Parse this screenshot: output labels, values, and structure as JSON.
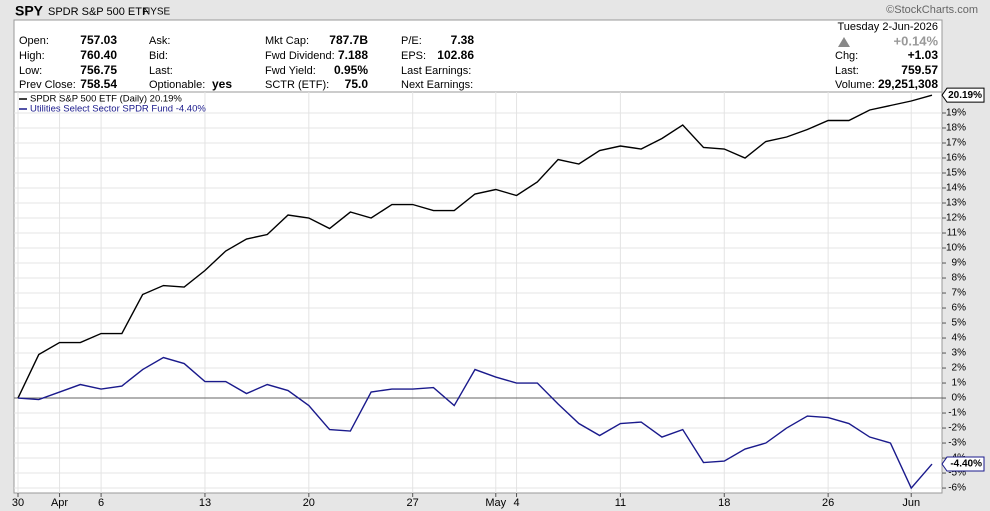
{
  "header": {
    "symbol": "SPY",
    "name": "SPDR S&P 500 ETF",
    "exchange": "NYSE",
    "credit": "©StockCharts.com",
    "date": "Tuesday  2-Jun-2026",
    "change_pct": "+0.14%",
    "columns": [
      [
        {
          "label": "Open:",
          "value": "757.03"
        },
        {
          "label": "High:",
          "value": "760.40"
        },
        {
          "label": "Low:",
          "value": "756.75"
        },
        {
          "label": "Prev Close:",
          "value": "758.54"
        }
      ],
      [
        {
          "label": "Ask:"
        },
        {
          "label": "Bid:"
        },
        {
          "label": "Last:"
        },
        {
          "label": "Optionable:",
          "value": "yes"
        }
      ],
      [
        {
          "label": "Mkt Cap:",
          "value": "787.7B"
        },
        {
          "label": "Fwd Dividend:",
          "value": "7.188"
        },
        {
          "label": "Fwd Yield:",
          "value": "0.95%"
        },
        {
          "label": "SCTR (ETF):",
          "value": "75.0"
        }
      ],
      [
        {
          "label": "P/E:",
          "value": "7.38"
        },
        {
          "label": "EPS:",
          "value": "102.86"
        },
        {
          "label": "Last Earnings:"
        },
        {
          "label": "Next Earnings:"
        }
      ],
      [
        {
          "label": "Chg:",
          "value": "+1.03"
        },
        {
          "label": "Last:",
          "value": "759.57"
        },
        {
          "label": "Volume:",
          "value": "29,251,308"
        }
      ]
    ]
  },
  "chart_data": {
    "type": "line",
    "categories": [
      "30",
      null,
      "Apr",
      null,
      "6",
      null,
      null,
      null,
      null,
      "13",
      null,
      null,
      null,
      null,
      "20",
      null,
      null,
      null,
      null,
      "27",
      null,
      null,
      null,
      "May",
      "4",
      null,
      null,
      null,
      null,
      "11",
      null,
      null,
      null,
      null,
      "18",
      null,
      null,
      null,
      null,
      "26",
      null,
      null,
      null,
      "Jun",
      null
    ],
    "series": [
      {
        "name": "SPDR S&P 500 ETF (Daily) 20.19%",
        "color": "#000000",
        "values": [
          0,
          2.9,
          3.7,
          3.7,
          4.3,
          4.3,
          6.9,
          7.5,
          7.4,
          8.5,
          9.8,
          10.6,
          10.9,
          12.2,
          12.0,
          11.3,
          12.4,
          12.0,
          12.9,
          12.9,
          12.5,
          12.5,
          13.6,
          13.9,
          13.5,
          14.4,
          15.9,
          15.6,
          16.5,
          16.8,
          16.6,
          17.3,
          18.2,
          16.7,
          16.6,
          16.0,
          17.1,
          17.4,
          17.9,
          18.5,
          18.5,
          19.2,
          19.5,
          19.8,
          20.19
        ],
        "value_labels": [
          null,
          null,
          null,
          null,
          null,
          null,
          null,
          null,
          null,
          null,
          null,
          null,
          null,
          null,
          null,
          null,
          null,
          null,
          null,
          null,
          null,
          null,
          null,
          null,
          null,
          null,
          null,
          null,
          null,
          null,
          null,
          null,
          null,
          null,
          null,
          null,
          null,
          null,
          null,
          null,
          null,
          null,
          null,
          null,
          "20.19%"
        ]
      },
      {
        "name": "Utilities Select Sector SPDR Fund -4.40%",
        "color": "#1a1a8c",
        "values": [
          0,
          -0.1,
          0.4,
          0.9,
          0.6,
          0.8,
          1.9,
          2.7,
          2.3,
          1.1,
          1.1,
          0.3,
          0.9,
          0.5,
          -0.5,
          -2.1,
          -2.2,
          0.4,
          0.6,
          0.6,
          0.7,
          -0.5,
          1.9,
          1.4,
          1.0,
          1.0,
          -0.4,
          -1.7,
          -2.5,
          -1.7,
          -1.6,
          -2.6,
          -2.1,
          -4.3,
          -4.2,
          -3.4,
          -3.0,
          -2.0,
          -1.2,
          -1.3,
          -1.7,
          -2.6,
          -3.0,
          -6.0,
          -4.4
        ],
        "value_labels": [
          null,
          null,
          null,
          null,
          null,
          null,
          null,
          null,
          null,
          null,
          null,
          null,
          null,
          null,
          null,
          null,
          null,
          null,
          null,
          null,
          null,
          null,
          null,
          null,
          null,
          null,
          null,
          null,
          null,
          null,
          null,
          null,
          null,
          null,
          null,
          null,
          null,
          null,
          null,
          null,
          null,
          null,
          null,
          null,
          "-4.40%"
        ]
      }
    ],
    "ylim": [
      -6.33,
      20.4
    ],
    "yticks": [
      {
        "value": -6,
        "label": "-6%"
      },
      {
        "value": -5,
        "label": "-5%"
      },
      {
        "value": -4,
        "label": "-4%"
      },
      {
        "value": -3,
        "label": "-3%"
      },
      {
        "value": -2,
        "label": "-2%"
      },
      {
        "value": -1,
        "label": "-1%"
      },
      {
        "value": 0,
        "label": "0%"
      },
      {
        "value": 1,
        "label": "1%"
      },
      {
        "value": 2,
        "label": "2%"
      },
      {
        "value": 3,
        "label": "3%"
      },
      {
        "value": 4,
        "label": "4%"
      },
      {
        "value": 5,
        "label": "5%"
      },
      {
        "value": 6,
        "label": "6%"
      },
      {
        "value": 7,
        "label": "7%"
      },
      {
        "value": 8,
        "label": "8%"
      },
      {
        "value": 9,
        "label": "9%"
      },
      {
        "value": 10,
        "label": "10%"
      },
      {
        "value": 11,
        "label": "11%"
      },
      {
        "value": 12,
        "label": "12%"
      },
      {
        "value": 13,
        "label": "13%"
      },
      {
        "value": 14,
        "label": "14%"
      },
      {
        "value": 15,
        "label": "15%"
      },
      {
        "value": 16,
        "label": "16%"
      },
      {
        "value": 17,
        "label": "17%"
      },
      {
        "value": 18,
        "label": "18%"
      },
      {
        "value": 19,
        "label": "19%"
      }
    ],
    "grid": true
  }
}
